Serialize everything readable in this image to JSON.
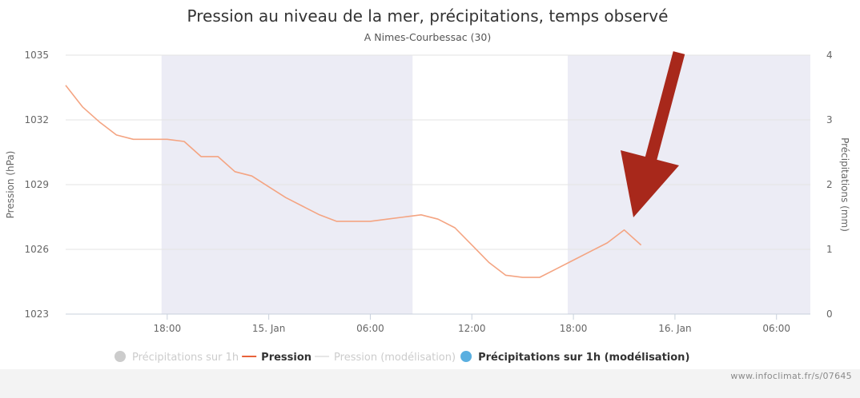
{
  "chart_data": {
    "type": "line",
    "title": "Pression au niveau de la mer, précipitations, temps observé",
    "subtitle": "A Nimes-Courbessac (30)",
    "ylabel": "Pression (hPa)",
    "y2label": "Précipitations (mm)",
    "ylim": [
      1023,
      1035
    ],
    "y2lim": [
      0,
      4
    ],
    "yticks": [
      "1035",
      "1032",
      "1029",
      "1026",
      "1023"
    ],
    "y2ticks": [
      "4",
      "3",
      "2",
      "1",
      "0"
    ],
    "xlim": [
      "2024-01-14T12:00",
      "2024-01-16T08:00"
    ],
    "xticks": [
      {
        "t": "2024-01-14T18:00",
        "label": "18:00"
      },
      {
        "t": "2024-01-15T00:00",
        "label": "15. Jan"
      },
      {
        "t": "2024-01-15T06:00",
        "label": "06:00"
      },
      {
        "t": "2024-01-15T12:00",
        "label": "12:00"
      },
      {
        "t": "2024-01-15T18:00",
        "label": "18:00"
      },
      {
        "t": "2024-01-16T00:00",
        "label": "16. Jan"
      },
      {
        "t": "2024-01-16T06:00",
        "label": "06:00"
      }
    ],
    "night_bands": [
      [
        "2024-01-14T17:40",
        "2024-01-15T08:30"
      ],
      [
        "2024-01-15T17:40",
        "2024-01-16T08:00"
      ]
    ],
    "grid": true,
    "legend_position": "bottom",
    "series": [
      {
        "name": "Pression",
        "color": "#f4a482",
        "x": [
          "2024-01-14T12:00",
          "2024-01-14T13:00",
          "2024-01-14T14:00",
          "2024-01-14T15:00",
          "2024-01-14T16:00",
          "2024-01-14T17:00",
          "2024-01-14T18:00",
          "2024-01-14T19:00",
          "2024-01-14T20:00",
          "2024-01-14T21:00",
          "2024-01-14T22:00",
          "2024-01-14T23:00",
          "2024-01-15T00:00",
          "2024-01-15T01:00",
          "2024-01-15T02:00",
          "2024-01-15T03:00",
          "2024-01-15T04:00",
          "2024-01-15T05:00",
          "2024-01-15T06:00",
          "2024-01-15T07:00",
          "2024-01-15T08:00",
          "2024-01-15T09:00",
          "2024-01-15T10:00",
          "2024-01-15T11:00",
          "2024-01-15T12:00",
          "2024-01-15T13:00",
          "2024-01-15T14:00",
          "2024-01-15T15:00",
          "2024-01-15T16:00",
          "2024-01-15T17:00",
          "2024-01-15T18:00",
          "2024-01-15T19:00",
          "2024-01-15T20:00",
          "2024-01-15T21:00",
          "2024-01-15T22:00",
          "2024-01-15T23:00"
        ],
        "values": [
          1033.6,
          1032.6,
          1031.9,
          1031.3,
          1031.1,
          1031.1,
          1031.1,
          1031.0,
          1030.3,
          1030.3,
          1029.6,
          1029.4,
          1028.9,
          1028.4,
          1028.0,
          1027.6,
          1027.3,
          1027.3,
          1027.3,
          1027.4,
          1027.5,
          1027.6,
          1027.4,
          1027.0,
          1026.2,
          1025.4,
          1024.8,
          1024.7,
          1024.7,
          1025.1,
          1025.5,
          1025.9,
          1026.3,
          1026.9,
          1026.2,
          null
        ]
      }
    ],
    "legend": [
      {
        "label": "Précipitations sur 1h",
        "symbol": "dot",
        "color": "#cccccc",
        "active": false
      },
      {
        "label": "Pression",
        "symbol": "line",
        "color": "#e8623a",
        "active": true
      },
      {
        "label": "Pression (modélisation)",
        "symbol": "line",
        "color": "#e6e6e6",
        "active": false
      },
      {
        "label": "Précipitations sur 1h (modélisation)",
        "symbol": "dot",
        "color": "#5aafe0",
        "active": true
      }
    ],
    "annotation": {
      "type": "arrow",
      "color": "#a8281b"
    }
  },
  "footer": {
    "source": "www.infoclimat.fr/s/07645"
  }
}
